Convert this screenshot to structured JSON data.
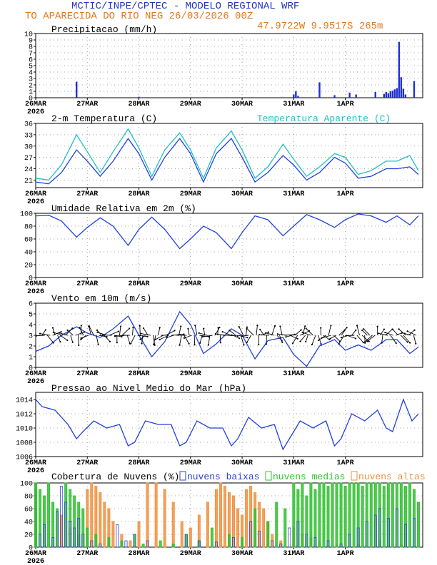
{
  "header": {
    "line1": "MCTIC/INPE/CPTEC - MODELO REGIONAL WRF",
    "line2": "TO APARECIDA DO RIO NEG   26/03/2026 00Z",
    "coords": "47.9722W  9.9517S 265m"
  },
  "colors": {
    "header_blue": "#2233cc",
    "header_orange": "#e07820",
    "line_blue": "#2040e0",
    "line_cyan": "#20c0c0",
    "bar_blue": "#2030d0",
    "cloud_low": "#3040d0",
    "cloud_mid": "#30c030",
    "cloud_high": "#f09040"
  },
  "x_axis": {
    "labels": [
      "26MAR",
      "27MAR",
      "28MAR",
      "29MAR",
      "30MAR",
      "31MAR",
      "1APR"
    ],
    "year": "2026"
  },
  "chart_data": [
    {
      "id": "precip",
      "type": "bar",
      "title": "Precipitacao (mm/h)",
      "ylim": [
        0,
        10
      ],
      "yticks": [
        "0",
        "1",
        "2",
        "3",
        "4",
        "5",
        "6",
        "7",
        "8",
        "9",
        "10"
      ],
      "x_unit": "hours since 26MAR 00Z",
      "x": [
        19,
        48,
        120,
        121,
        122,
        132,
        139,
        146,
        149,
        158,
        162,
        163,
        164,
        165,
        166,
        167,
        168,
        169,
        170,
        171,
        172,
        176
      ],
      "values": [
        2.5,
        0.15,
        0.5,
        1.0,
        0.3,
        2.4,
        0.4,
        0.8,
        0.5,
        0.9,
        0.6,
        0.9,
        0.7,
        1.0,
        1.1,
        1.3,
        1.5,
        8.7,
        3.2,
        1.4,
        0.5,
        2.6
      ]
    },
    {
      "id": "temperature",
      "type": "line",
      "title": "2-m Temperatura (C)",
      "legend": "Temperatura Aparente (C)",
      "ylim": [
        19,
        36
      ],
      "yticks": [
        "21",
        "24",
        "27",
        "30",
        "33",
        "36"
      ],
      "x_unit": "hours since 26MAR 00Z",
      "series": [
        {
          "name": "Temperatura",
          "x": [
            0,
            6,
            12,
            19,
            24,
            30,
            36,
            43,
            48,
            54,
            60,
            67,
            72,
            78,
            84,
            91,
            96,
            102,
            108,
            115,
            120,
            126,
            132,
            139,
            144,
            150,
            156,
            163,
            168,
            174,
            178
          ],
          "values": [
            20.5,
            20.0,
            23.0,
            29.0,
            26.0,
            22.0,
            26.0,
            32.0,
            28.0,
            21.0,
            27.0,
            32.0,
            28.0,
            20.5,
            28.0,
            32.0,
            27.0,
            20.5,
            23.0,
            27.5,
            25.0,
            21.0,
            23.0,
            27.0,
            25.5,
            21.5,
            22.0,
            24.0,
            24.0,
            24.5,
            22.5
          ]
        },
        {
          "name": "Temperatura Aparente",
          "x": [
            0,
            6,
            12,
            19,
            24,
            30,
            36,
            43,
            48,
            54,
            60,
            67,
            72,
            78,
            84,
            91,
            96,
            102,
            108,
            115,
            120,
            126,
            132,
            139,
            144,
            150,
            156,
            163,
            168,
            174,
            178
          ],
          "values": [
            21.5,
            21.0,
            25.0,
            33.0,
            28.5,
            23.0,
            28.5,
            34.5,
            29.5,
            22.0,
            29.0,
            33.5,
            29.0,
            21.5,
            29.5,
            34.0,
            29.0,
            21.5,
            24.5,
            30.5,
            26.5,
            22.0,
            24.5,
            28.0,
            27.0,
            22.5,
            23.5,
            26.0,
            26.0,
            27.5,
            23.5
          ]
        }
      ]
    },
    {
      "id": "humidity",
      "type": "line",
      "title": "Umidade Relativa em 2m (%)",
      "ylim": [
        0,
        100
      ],
      "yticks": [
        "0",
        "20",
        "40",
        "60",
        "80",
        "100"
      ],
      "x_unit": "hours since 26MAR 00Z",
      "series": [
        {
          "name": "Umidade Relativa",
          "x": [
            0,
            6,
            12,
            19,
            24,
            30,
            36,
            43,
            48,
            54,
            60,
            67,
            72,
            78,
            84,
            91,
            96,
            102,
            108,
            115,
            120,
            126,
            132,
            139,
            144,
            150,
            156,
            163,
            168,
            174,
            178
          ],
          "values": [
            96,
            97,
            88,
            63,
            78,
            93,
            80,
            50,
            75,
            94,
            75,
            45,
            60,
            80,
            70,
            45,
            70,
            96,
            90,
            65,
            80,
            98,
            90,
            78,
            90,
            99,
            96,
            86,
            96,
            82,
            96
          ]
        }
      ]
    },
    {
      "id": "wind",
      "type": "line",
      "title": "Vento em 10m (m/s)",
      "ylim": [
        0,
        6
      ],
      "yticks": [
        "0",
        "1",
        "2",
        "3",
        "4",
        "5",
        "6"
      ],
      "x_unit": "hours since 26MAR 00Z",
      "series": [
        {
          "name": "Vento",
          "x": [
            0,
            6,
            12,
            19,
            24,
            30,
            36,
            43,
            48,
            54,
            60,
            67,
            72,
            78,
            84,
            91,
            96,
            102,
            108,
            115,
            120,
            126,
            132,
            139,
            144,
            150,
            156,
            163,
            168,
            174,
            178
          ],
          "values": [
            1.5,
            2.0,
            3.0,
            3.8,
            3.2,
            2.8,
            3.6,
            4.8,
            3.0,
            1.0,
            2.4,
            5.2,
            4.0,
            1.3,
            2.2,
            3.6,
            3.0,
            0.8,
            2.5,
            2.8,
            1.2,
            0.1,
            2.0,
            2.6,
            1.6,
            2.1,
            1.6,
            2.6,
            2.6,
            1.3,
            1.9
          ]
        }
      ],
      "barbs": {
        "row_value": 3.0,
        "x_start": 3,
        "x_end": 177,
        "step": 1.2
      }
    },
    {
      "id": "pressure",
      "type": "line",
      "title": "Pressao ao Nivel Medio do Mar (hPa)",
      "ylim": [
        1006,
        1015
      ],
      "yticks": [
        "1006",
        "1008",
        "1010",
        "1012",
        "1014"
      ],
      "x_unit": "hours since 26MAR 00Z",
      "series": [
        {
          "name": "Pressao",
          "x": [
            0,
            3,
            9,
            15,
            19,
            22,
            27,
            33,
            39,
            43,
            46,
            51,
            57,
            63,
            67,
            70,
            75,
            81,
            87,
            91,
            94,
            99,
            105,
            111,
            115,
            118,
            123,
            129,
            135,
            139,
            142,
            147,
            153,
            159,
            163,
            166,
            171,
            175,
            178
          ],
          "values": [
            1014.0,
            1013.0,
            1012.5,
            1010.5,
            1008.5,
            1009.5,
            1011.0,
            1010.0,
            1010.5,
            1007.5,
            1008.0,
            1011.0,
            1010.5,
            1010.5,
            1007.5,
            1008.0,
            1011.0,
            1010.0,
            1010.0,
            1007.5,
            1008.5,
            1011.5,
            1010.0,
            1010.5,
            1007.0,
            1008.5,
            1011.0,
            1010.0,
            1011.0,
            1007.5,
            1008.5,
            1012.0,
            1011.0,
            1012.5,
            1010.0,
            1009.5,
            1014.0,
            1011.0,
            1012.0
          ]
        }
      ]
    },
    {
      "id": "clouds",
      "type": "bar",
      "title": "Cobertura de Nuvens (%)",
      "legend": [
        "nuvens baixas",
        "nuvens medias",
        "nuvens altas"
      ],
      "ylim": [
        0,
        100
      ],
      "yticks": [
        "0",
        "20",
        "40",
        "60",
        "80",
        "100"
      ],
      "x_unit": "hours since 26MAR 00Z",
      "series": [
        {
          "name": "nuvens baixas",
          "x": [
            2,
            4,
            8,
            10,
            12,
            14,
            16,
            18,
            20,
            22,
            26,
            30,
            38,
            42,
            46,
            52,
            70,
            76,
            84,
            92,
            100,
            104,
            110,
            114,
            118,
            122,
            126,
            130,
            136,
            142,
            146,
            150,
            154,
            158,
            160,
            164,
            168,
            172,
            176
          ],
          "values": [
            20,
            35,
            15,
            55,
            95,
            70,
            40,
            30,
            45,
            20,
            10,
            5,
            35,
            10,
            20,
            10,
            20,
            10,
            8,
            15,
            40,
            25,
            10,
            5,
            30,
            40,
            20,
            15,
            10,
            5,
            20,
            30,
            40,
            50,
            60,
            45,
            60,
            35,
            45
          ]
        },
        {
          "name": "nuvens medias",
          "x": [
            0,
            2,
            4,
            6,
            8,
            10,
            14,
            16,
            18,
            20,
            22,
            24,
            28,
            34,
            40,
            46,
            50,
            58,
            64,
            70,
            76,
            82,
            90,
            96,
            102,
            108,
            112,
            116,
            120,
            122,
            124,
            126,
            128,
            130,
            132,
            134,
            136,
            138,
            140,
            142,
            144,
            146,
            148,
            150,
            152,
            154,
            156,
            158,
            160,
            162,
            164,
            166,
            168,
            170,
            172,
            174,
            176,
            178
          ],
          "values": [
            100,
            90,
            80,
            100,
            70,
            60,
            100,
            90,
            80,
            70,
            60,
            30,
            20,
            15,
            10,
            20,
            5,
            10,
            5,
            20,
            10,
            30,
            20,
            15,
            60,
            40,
            70,
            60,
            100,
            90,
            100,
            80,
            100,
            90,
            100,
            100,
            95,
            100,
            100,
            100,
            95,
            100,
            100,
            100,
            95,
            100,
            100,
            100,
            100,
            95,
            100,
            100,
            100,
            100,
            95,
            100,
            90,
            70
          ]
        },
        {
          "name": "nuvens altas",
          "x": [
            12,
            16,
            20,
            24,
            26,
            28,
            30,
            32,
            34,
            36,
            40,
            44,
            48,
            52,
            56,
            60,
            64,
            68,
            72,
            76,
            80,
            84,
            86,
            88,
            90,
            92,
            94,
            96,
            98,
            100,
            102,
            104,
            106,
            108,
            110,
            114,
            120,
            124,
            128,
            132,
            140,
            150,
            160,
            170
          ],
          "values": [
            50,
            30,
            20,
            90,
            100,
            95,
            85,
            70,
            60,
            40,
            20,
            10,
            40,
            100,
            100,
            90,
            70,
            40,
            30,
            50,
            70,
            90,
            100,
            95,
            85,
            80,
            60,
            50,
            90,
            95,
            85,
            70,
            60,
            40,
            20,
            10,
            30,
            20,
            15,
            10,
            5,
            5,
            10,
            5
          ]
        }
      ]
    }
  ]
}
